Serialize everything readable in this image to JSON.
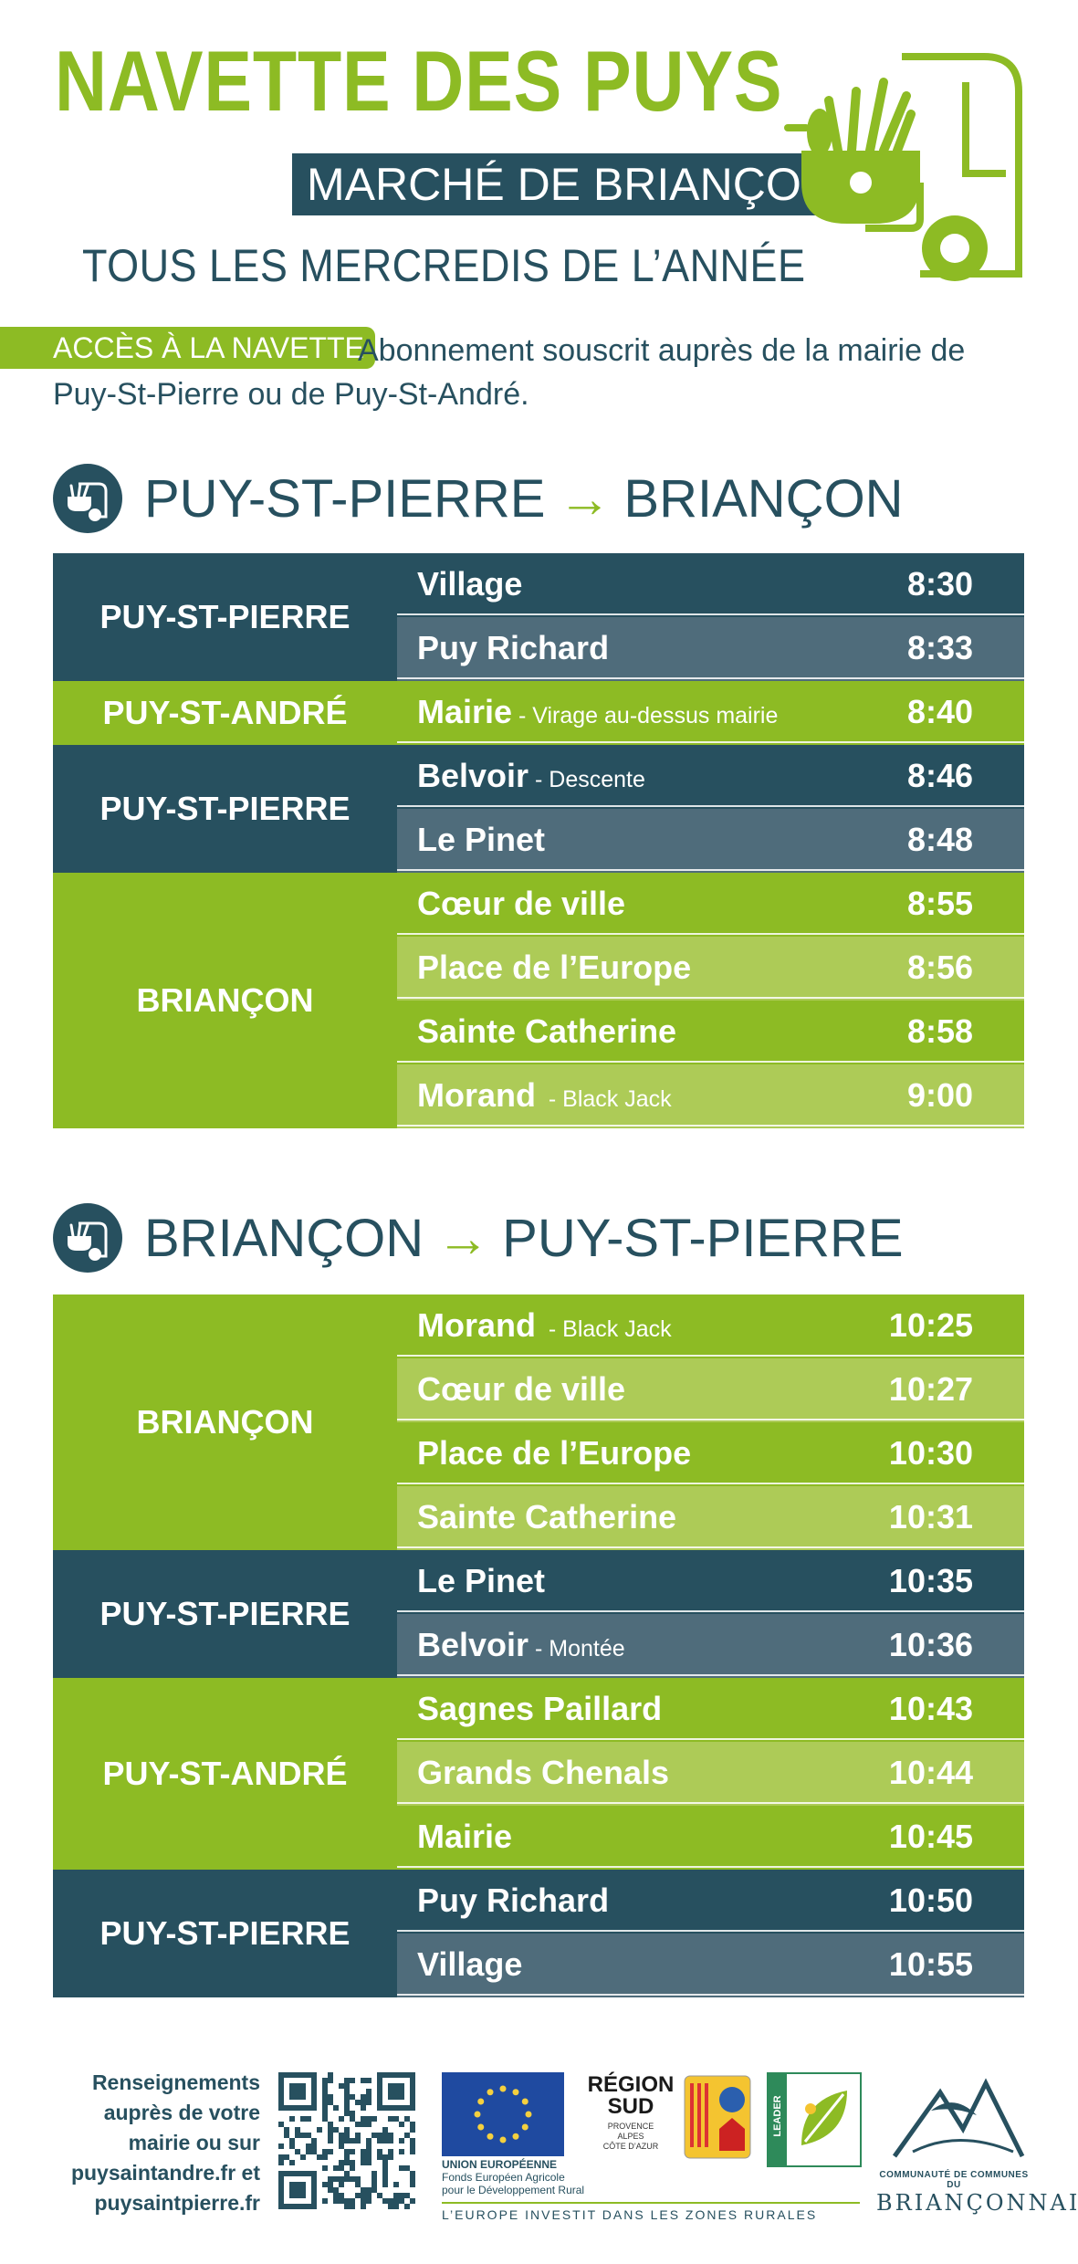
{
  "header": {
    "title": "NAVETTE DES PUYS",
    "subtitle": "MARCHÉ DE BRIANÇON",
    "tagline": "TOUS LES MERCREDIS DE L’ANNÉE"
  },
  "access": {
    "badge": "ACCÈS À LA NAVETTE",
    "text_line1": "Abonnement souscrit auprès de la mairie de",
    "text_line2": "Puy-St-Pierre ou de Puy-St-André."
  },
  "colors": {
    "dark": "#27505f",
    "dark_alt": "#4f6c7b",
    "green": "#8dbb24",
    "green_alt": "#adcb57"
  },
  "routes": [
    {
      "from": "PUY-ST-PIERRE",
      "arrow": "→",
      "to": "BRIANÇON",
      "groups": [
        {
          "label": "PUY-ST-PIERRE",
          "color": "dark",
          "stops": [
            {
              "stop": "Village",
              "note": "",
              "time": "8:30"
            },
            {
              "stop": "Puy Richard",
              "note": "",
              "time": "8:33"
            }
          ]
        },
        {
          "label": "PUY-ST-ANDRÉ",
          "color": "green",
          "stops": [
            {
              "stop": "Mairie",
              "note": " - Virage au-dessus mairie",
              "time": "8:40"
            }
          ]
        },
        {
          "label": "PUY-ST-PIERRE",
          "color": "dark",
          "stops": [
            {
              "stop": "Belvoir",
              "note": " - Descente",
              "time": "8:46"
            },
            {
              "stop": "Le Pinet",
              "note": "",
              "time": "8:48"
            }
          ]
        },
        {
          "label": "BRIANÇON",
          "color": "green",
          "stops": [
            {
              "stop": "Cœur de ville",
              "note": "",
              "time": "8:55"
            },
            {
              "stop": "Place de l’Europe",
              "note": "",
              "time": "8:56"
            },
            {
              "stop": "Sainte Catherine",
              "note": "",
              "time": "8:58"
            },
            {
              "stop": "Morand",
              "note": "  - Black Jack",
              "time": "9:00"
            }
          ]
        }
      ]
    },
    {
      "from": "BRIANÇON",
      "arrow": "→",
      "to": "PUY-ST-PIERRE",
      "groups": [
        {
          "label": "BRIANÇON",
          "color": "green",
          "stops": [
            {
              "stop": "Morand",
              "note": "  - Black Jack",
              "time": "10:25"
            },
            {
              "stop": "Cœur de ville",
              "note": "",
              "time": "10:27"
            },
            {
              "stop": "Place de l’Europe",
              "note": "",
              "time": "10:30"
            },
            {
              "stop": "Sainte Catherine",
              "note": "",
              "time": "10:31"
            }
          ]
        },
        {
          "label": "PUY-ST-PIERRE",
          "color": "dark",
          "stops": [
            {
              "stop": "Le Pinet",
              "note": "",
              "time": "10:35"
            },
            {
              "stop": "Belvoir",
              "note": " - Montée",
              "time": "10:36"
            }
          ]
        },
        {
          "label": "PUY-ST-ANDRÉ",
          "color": "green",
          "stops": [
            {
              "stop": "Sagnes Paillard",
              "note": "",
              "time": "10:43"
            },
            {
              "stop": "Grands Chenals",
              "note": "",
              "time": "10:44"
            },
            {
              "stop": "Mairie",
              "note": "",
              "time": "10:45"
            }
          ]
        },
        {
          "label": "PUY-ST-PIERRE",
          "color": "dark",
          "stops": [
            {
              "stop": "Puy Richard",
              "note": "",
              "time": "10:50"
            },
            {
              "stop": "Village",
              "note": "",
              "time": "10:55"
            }
          ]
        }
      ]
    }
  ],
  "footer": {
    "info_lines": [
      "Renseignements",
      "auprès de votre",
      "mairie ou sur",
      "puysaintandre.fr et",
      "puysaintpierre.fr"
    ],
    "eu_title": "UNION EUROPÉENNE",
    "eu_sub1": "Fonds Européen Agricole",
    "eu_sub2": "pour le Développement Rural",
    "region_name1": "RÉGION",
    "region_name2": "SUD",
    "region_sub1": "PROVENCE",
    "region_sub2": "ALPES",
    "region_sub3": "CÔTE D’AZUR",
    "leader_label": "LEADER",
    "eu_tagline": "L’EUROPE INVESTIT DANS LES ZONES RURALES",
    "ccb_line1": "COMMUNAUTÉ DE COMMUNES DU",
    "ccb_line2": "BRIANÇONNAIS"
  }
}
